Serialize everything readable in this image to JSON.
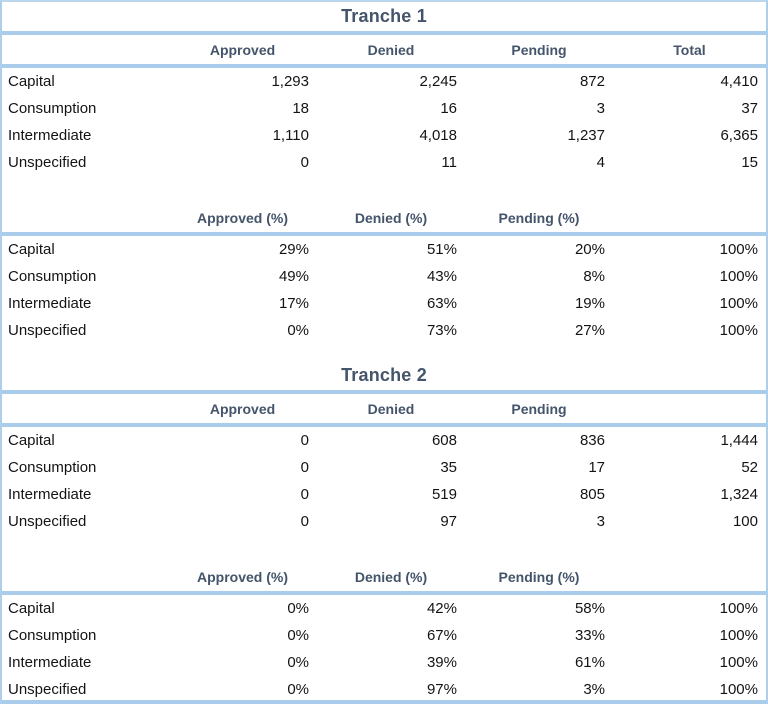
{
  "appearance": {
    "band_color": "#a9ccea",
    "border_color": "#aecfeb",
    "header_text_color": "#44546a",
    "data_text_color": "#141414",
    "background_color": "#ffffff"
  },
  "tranches": [
    {
      "title": "Tranche 1",
      "counts": {
        "headers": [
          "Approved",
          "Denied",
          "Pending",
          "Total"
        ],
        "rows": [
          {
            "label": "Capital",
            "values": [
              "1,293",
              "2,245",
              "872",
              "4,410"
            ]
          },
          {
            "label": "Consumption",
            "values": [
              "18",
              "16",
              "3",
              "37"
            ]
          },
          {
            "label": "Intermediate",
            "values": [
              "1,110",
              "4,018",
              "1,237",
              "6,365"
            ]
          },
          {
            "label": "Unspecified",
            "values": [
              "0",
              "11",
              "4",
              "15"
            ]
          }
        ]
      },
      "percentages": {
        "headers": [
          "Approved (%)",
          "Denied (%)",
          "Pending (%)",
          ""
        ],
        "rows": [
          {
            "label": "Capital",
            "values": [
              "29%",
              "51%",
              "20%",
              "100%"
            ]
          },
          {
            "label": "Consumption",
            "values": [
              "49%",
              "43%",
              "8%",
              "100%"
            ]
          },
          {
            "label": "Intermediate",
            "values": [
              "17%",
              "63%",
              "19%",
              "100%"
            ]
          },
          {
            "label": "Unspecified",
            "values": [
              "0%",
              "73%",
              "27%",
              "100%"
            ]
          }
        ]
      }
    },
    {
      "title": "Tranche 2",
      "counts": {
        "headers": [
          "Approved",
          "Denied",
          "Pending",
          ""
        ],
        "rows": [
          {
            "label": "Capital",
            "values": [
              "0",
              "608",
              "836",
              "1,444"
            ]
          },
          {
            "label": "Consumption",
            "values": [
              "0",
              "35",
              "17",
              "52"
            ]
          },
          {
            "label": "Intermediate",
            "values": [
              "0",
              "519",
              "805",
              "1,324"
            ]
          },
          {
            "label": "Unspecified",
            "values": [
              "0",
              "97",
              "3",
              "100"
            ]
          }
        ]
      },
      "percentages": {
        "headers": [
          "Approved (%)",
          "Denied (%)",
          "Pending (%)",
          ""
        ],
        "rows": [
          {
            "label": "Capital",
            "values": [
              "0%",
              "42%",
              "58%",
              "100%"
            ]
          },
          {
            "label": "Consumption",
            "values": [
              "0%",
              "67%",
              "33%",
              "100%"
            ]
          },
          {
            "label": "Intermediate",
            "values": [
              "0%",
              "39%",
              "61%",
              "100%"
            ]
          },
          {
            "label": "Unspecified",
            "values": [
              "0%",
              "97%",
              "3%",
              "100%"
            ]
          }
        ]
      }
    }
  ]
}
